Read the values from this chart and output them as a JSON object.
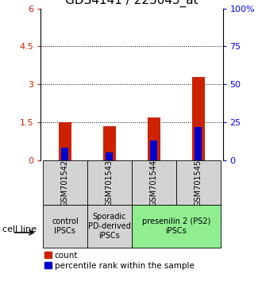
{
  "title": "GDS4141 / 223045_at",
  "samples": [
    "GSM701542",
    "GSM701543",
    "GSM701544",
    "GSM701545"
  ],
  "red_values": [
    1.5,
    1.35,
    1.7,
    3.3
  ],
  "blue_values_pct": [
    8,
    5,
    13,
    22
  ],
  "ylim_left": [
    0,
    6
  ],
  "ylim_right": [
    0,
    100
  ],
  "yticks_left": [
    0,
    1.5,
    3.0,
    4.5,
    6
  ],
  "ytick_labels_left": [
    "0",
    "1.5",
    "3",
    "4.5",
    "6"
  ],
  "yticks_right": [
    0,
    25,
    50,
    75,
    100
  ],
  "ytick_labels_right": [
    "0",
    "25",
    "50",
    "75",
    "100%"
  ],
  "hlines": [
    1.5,
    3.0,
    4.5
  ],
  "red_color": "#cc2200",
  "blue_color": "#0000cc",
  "bar_width": 0.28,
  "blue_bar_width": 0.16,
  "bar_positions": [
    0,
    1,
    2,
    3
  ],
  "title_fontsize": 11,
  "tick_fontsize": 8,
  "sample_fontsize": 7,
  "group_fontsize": 7,
  "legend_fontsize": 7.5,
  "cellline_fontsize": 8,
  "legend_red": "count",
  "legend_blue": "percentile rank within the sample",
  "group_info": [
    {
      "span": [
        0,
        0
      ],
      "label": "control\nIPSCs",
      "color": "#d3d3d3"
    },
    {
      "span": [
        1,
        1
      ],
      "label": "Sporadic\nPD-derived\niPSCs",
      "color": "#d3d3d3"
    },
    {
      "span": [
        2,
        3
      ],
      "label": "presenilin 2 (PS2)\niPSCs",
      "color": "#90ee90"
    }
  ]
}
